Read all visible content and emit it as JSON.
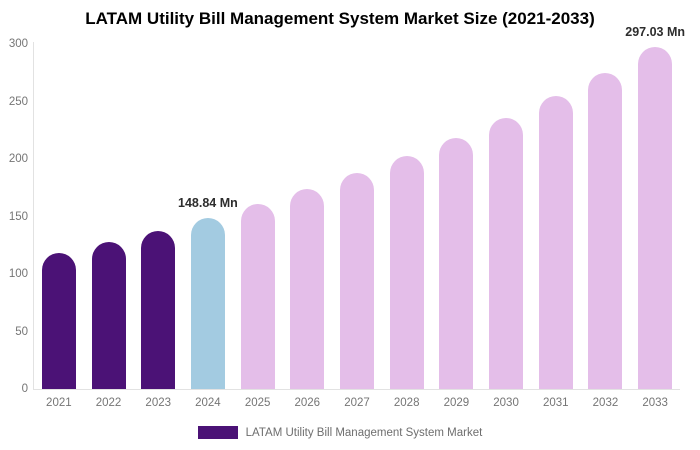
{
  "title": "LATAM Utility Bill Management System Market Size (2021-2033)",
  "legend": {
    "label": "LATAM Utility Bill Management System Market",
    "swatch_color": "#4B1276"
  },
  "colors": {
    "historical_bar": "#4B1276",
    "current_year_bar": "#A3CBE1",
    "forecast_bar": "#E4BEE9",
    "axis_line": "#E2E2E2",
    "tick_text": "#757575",
    "annotation_text": "#2D2D2D"
  },
  "chart_data": {
    "type": "bar",
    "title": "LATAM Utility Bill Management System Market Size (2021-2033)",
    "categories": [
      "2021",
      "2022",
      "2023",
      "2024",
      "2025",
      "2026",
      "2027",
      "2028",
      "2029",
      "2030",
      "2031",
      "2032",
      "2033"
    ],
    "series": [
      {
        "name": "LATAM Utility Bill Management System Market",
        "values": [
          118.2,
          127.6,
          137.8,
          148.84,
          160.7,
          173.6,
          187.4,
          202.4,
          218.6,
          236.0,
          254.9,
          275.2,
          297.03
        ]
      }
    ],
    "bar_colors": [
      "#4B1276",
      "#4B1276",
      "#4B1276",
      "#A3CBE1",
      "#E4BEE9",
      "#E4BEE9",
      "#E4BEE9",
      "#E4BEE9",
      "#E4BEE9",
      "#E4BEE9",
      "#E4BEE9",
      "#E4BEE9",
      "#E4BEE9"
    ],
    "xlabel": "",
    "ylabel": "",
    "ylim": [
      0,
      300
    ],
    "yticks": [
      0,
      50,
      100,
      150,
      200,
      250,
      300
    ],
    "grid": false,
    "legend_position": "bottom",
    "annotations": [
      {
        "category": "2024",
        "index": 3,
        "text": "148.84 Mn"
      },
      {
        "category": "2033",
        "index": 12,
        "text": "297.03 Mn"
      }
    ]
  }
}
